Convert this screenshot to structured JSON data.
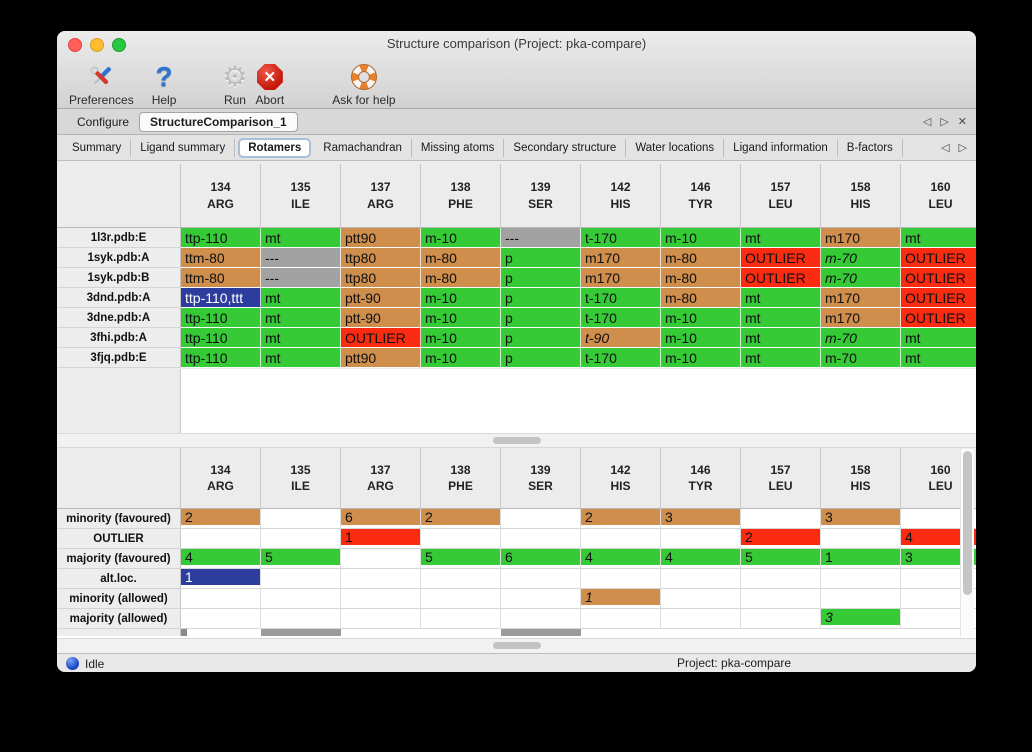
{
  "window": {
    "title": "Structure comparison (Project: pka-compare)"
  },
  "toolbar": {
    "items": [
      {
        "label": "Preferences",
        "icon": "tools-icon"
      },
      {
        "label": "Help",
        "icon": "question-icon"
      },
      {
        "label": "Run",
        "icon": "gear-icon"
      },
      {
        "label": "Abort",
        "icon": "stop-icon"
      },
      {
        "label": "Ask for help",
        "icon": "lifebuoy-icon"
      }
    ],
    "abort_glyph": "✕"
  },
  "tabs": {
    "items": [
      {
        "label": "Configure",
        "active": false
      },
      {
        "label": "StructureComparison_1",
        "active": true
      }
    ],
    "nav_left": "◁",
    "nav_right": "▷",
    "nav_close": "✕"
  },
  "subtabs": {
    "items": [
      {
        "label": "Summary",
        "selected": false
      },
      {
        "label": "Ligand summary",
        "selected": false
      },
      {
        "label": "Rotamers",
        "selected": true
      },
      {
        "label": "Ramachandran",
        "selected": false
      },
      {
        "label": "Missing atoms",
        "selected": false
      },
      {
        "label": "Secondary structure",
        "selected": false
      },
      {
        "label": "Water locations",
        "selected": false
      },
      {
        "label": "Ligand information",
        "selected": false
      },
      {
        "label": "B-factors",
        "selected": false
      }
    ],
    "nav_left": "◁",
    "nav_right": "▷"
  },
  "columns": [
    {
      "num": "134",
      "res": "ARG"
    },
    {
      "num": "135",
      "res": "ILE"
    },
    {
      "num": "137",
      "res": "ARG"
    },
    {
      "num": "138",
      "res": "PHE"
    },
    {
      "num": "139",
      "res": "SER"
    },
    {
      "num": "142",
      "res": "HIS"
    },
    {
      "num": "146",
      "res": "TYR"
    },
    {
      "num": "157",
      "res": "LEU"
    },
    {
      "num": "158",
      "res": "HIS"
    },
    {
      "num": "160",
      "res": "LEU"
    }
  ],
  "colors": {
    "green": "#36cb36",
    "tan": "#cf8e4c",
    "red": "#fa2b10",
    "gray": "#a2a2a2",
    "blue": "#2c3d9d"
  },
  "upper_table": {
    "rows": [
      {
        "label": "1l3r.pdb:E",
        "cells": [
          {
            "text": "ttp-110",
            "color": "green"
          },
          {
            "text": "mt",
            "color": "green"
          },
          {
            "text": "ptt90",
            "color": "tan"
          },
          {
            "text": "m-10",
            "color": "green"
          },
          {
            "text": "---",
            "color": "gray"
          },
          {
            "text": "t-170",
            "color": "green"
          },
          {
            "text": "m-10",
            "color": "green"
          },
          {
            "text": "mt",
            "color": "green"
          },
          {
            "text": "m170",
            "color": "tan"
          },
          {
            "text": "mt",
            "color": "green"
          }
        ]
      },
      {
        "label": "1syk.pdb:A",
        "cells": [
          {
            "text": "ttm-80",
            "color": "tan"
          },
          {
            "text": "---",
            "color": "gray"
          },
          {
            "text": "ttp80",
            "color": "tan"
          },
          {
            "text": "m-80",
            "color": "tan"
          },
          {
            "text": "p",
            "color": "green"
          },
          {
            "text": "m170",
            "color": "tan"
          },
          {
            "text": "m-80",
            "color": "tan"
          },
          {
            "text": "OUTLIER",
            "color": "red"
          },
          {
            "text": "m-70",
            "color": "green",
            "italic": true
          },
          {
            "text": "OUTLIER",
            "color": "red"
          }
        ]
      },
      {
        "label": "1syk.pdb:B",
        "cells": [
          {
            "text": "ttm-80",
            "color": "tan"
          },
          {
            "text": "---",
            "color": "gray"
          },
          {
            "text": "ttp80",
            "color": "tan"
          },
          {
            "text": "m-80",
            "color": "tan"
          },
          {
            "text": "p",
            "color": "green"
          },
          {
            "text": "m170",
            "color": "tan"
          },
          {
            "text": "m-80",
            "color": "tan"
          },
          {
            "text": "OUTLIER",
            "color": "red"
          },
          {
            "text": "m-70",
            "color": "green",
            "italic": true
          },
          {
            "text": "OUTLIER",
            "color": "red"
          }
        ]
      },
      {
        "label": "3dnd.pdb:A",
        "cells": [
          {
            "text": "ttp-110,ttt",
            "color": "blue"
          },
          {
            "text": "mt",
            "color": "green"
          },
          {
            "text": "ptt-90",
            "color": "tan"
          },
          {
            "text": "m-10",
            "color": "green"
          },
          {
            "text": "p",
            "color": "green"
          },
          {
            "text": "t-170",
            "color": "green"
          },
          {
            "text": "m-80",
            "color": "tan"
          },
          {
            "text": "mt",
            "color": "green"
          },
          {
            "text": "m170",
            "color": "tan"
          },
          {
            "text": "OUTLIER",
            "color": "red"
          }
        ]
      },
      {
        "label": "3dne.pdb:A",
        "cells": [
          {
            "text": "ttp-110",
            "color": "green"
          },
          {
            "text": "mt",
            "color": "green"
          },
          {
            "text": "ptt-90",
            "color": "tan"
          },
          {
            "text": "m-10",
            "color": "green"
          },
          {
            "text": "p",
            "color": "green"
          },
          {
            "text": "t-170",
            "color": "green"
          },
          {
            "text": "m-10",
            "color": "green"
          },
          {
            "text": "mt",
            "color": "green"
          },
          {
            "text": "m170",
            "color": "tan"
          },
          {
            "text": "OUTLIER",
            "color": "red"
          }
        ]
      },
      {
        "label": "3fhi.pdb:A",
        "cells": [
          {
            "text": "ttp-110",
            "color": "green"
          },
          {
            "text": "mt",
            "color": "green"
          },
          {
            "text": "OUTLIER",
            "color": "red"
          },
          {
            "text": "m-10",
            "color": "green"
          },
          {
            "text": "p",
            "color": "green"
          },
          {
            "text": "t-90",
            "color": "tan",
            "italic": true
          },
          {
            "text": "m-10",
            "color": "green"
          },
          {
            "text": "mt",
            "color": "green"
          },
          {
            "text": "m-70",
            "color": "green",
            "italic": true
          },
          {
            "text": "mt",
            "color": "green"
          }
        ]
      },
      {
        "label": "3fjq.pdb:E",
        "cells": [
          {
            "text": "ttp-110",
            "color": "green"
          },
          {
            "text": "mt",
            "color": "green"
          },
          {
            "text": "ptt90",
            "color": "tan"
          },
          {
            "text": "m-10",
            "color": "green"
          },
          {
            "text": "p",
            "color": "green"
          },
          {
            "text": "t-170",
            "color": "green"
          },
          {
            "text": "m-10",
            "color": "green"
          },
          {
            "text": "mt",
            "color": "green"
          },
          {
            "text": "m-70",
            "color": "green"
          },
          {
            "text": "mt",
            "color": "green"
          }
        ]
      }
    ]
  },
  "lower_table": {
    "rows": [
      {
        "label": "minority (favoured)",
        "cells": [
          {
            "text": "2",
            "color": "tan"
          },
          null,
          {
            "text": "6",
            "color": "tan"
          },
          {
            "text": "2",
            "color": "tan"
          },
          null,
          {
            "text": "2",
            "color": "tan"
          },
          {
            "text": "3",
            "color": "tan"
          },
          null,
          {
            "text": "3",
            "color": "tan"
          },
          null
        ]
      },
      {
        "label": "OUTLIER",
        "cells": [
          null,
          null,
          {
            "text": "1",
            "color": "red"
          },
          null,
          null,
          null,
          null,
          {
            "text": "2",
            "color": "red"
          },
          null,
          {
            "text": "4",
            "color": "red"
          }
        ]
      },
      {
        "label": "majority (favoured)",
        "cells": [
          {
            "text": "4",
            "color": "green"
          },
          {
            "text": "5",
            "color": "green"
          },
          null,
          {
            "text": "5",
            "color": "green"
          },
          {
            "text": "6",
            "color": "green"
          },
          {
            "text": "4",
            "color": "green"
          },
          {
            "text": "4",
            "color": "green"
          },
          {
            "text": "5",
            "color": "green"
          },
          {
            "text": "1",
            "color": "green"
          },
          {
            "text": "3",
            "color": "green"
          }
        ]
      },
      {
        "label": "alt.loc.",
        "cells": [
          {
            "text": "1",
            "color": "blue"
          },
          null,
          null,
          null,
          null,
          null,
          null,
          null,
          null,
          null
        ]
      },
      {
        "label": "minority (allowed)",
        "cells": [
          null,
          null,
          null,
          null,
          null,
          {
            "text": "1",
            "color": "tan",
            "italic": true
          },
          null,
          null,
          null,
          null
        ]
      },
      {
        "label": "majority (allowed)",
        "cells": [
          null,
          null,
          null,
          null,
          null,
          null,
          null,
          null,
          {
            "text": "3",
            "color": "green",
            "italic": true
          },
          null
        ]
      }
    ],
    "partial_row": {
      "gray_columns": [
        1,
        4
      ],
      "edge_square_column": 0
    }
  },
  "statusbar": {
    "status": "Idle",
    "project": "Project: pka-compare"
  }
}
